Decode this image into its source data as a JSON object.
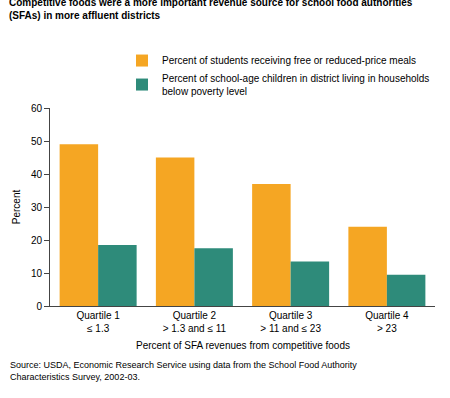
{
  "chart_data": {
    "type": "bar",
    "title": "Competitive foods were a more important revenue source for school food authorities\n(SFAs) in more affluent districts",
    "y_label": "Percent",
    "x_label": "Percent of SFA revenues from competitive foods",
    "annotations": [
      "Source: USDA, Economic Research Service using data from the School Food Authority\nCharacteristics Survey, 2002-03."
    ],
    "categories": [
      "Quartile 1\n≤ 1.3",
      "Quartile 2\n> 1.3 and ≤ 11",
      "Quartile 3\n> 11 and ≤ 23",
      "Quartile 4\n> 23"
    ],
    "series": [
      {
        "name": "Percent of students receiving free or reduced-price meals",
        "color": "#F5A623",
        "values": [
          49,
          45,
          37,
          24
        ]
      },
      {
        "name": "Percent of school-age children in district living in households\nbelow poverty level",
        "color": "#2E8B7A",
        "values": [
          18.5,
          17.5,
          13.5,
          9.5
        ]
      }
    ],
    "ylim": [
      0,
      60
    ],
    "yticks": [
      0,
      10,
      20,
      30,
      40,
      50,
      60
    ],
    "grid": false,
    "legend": "upper right"
  }
}
